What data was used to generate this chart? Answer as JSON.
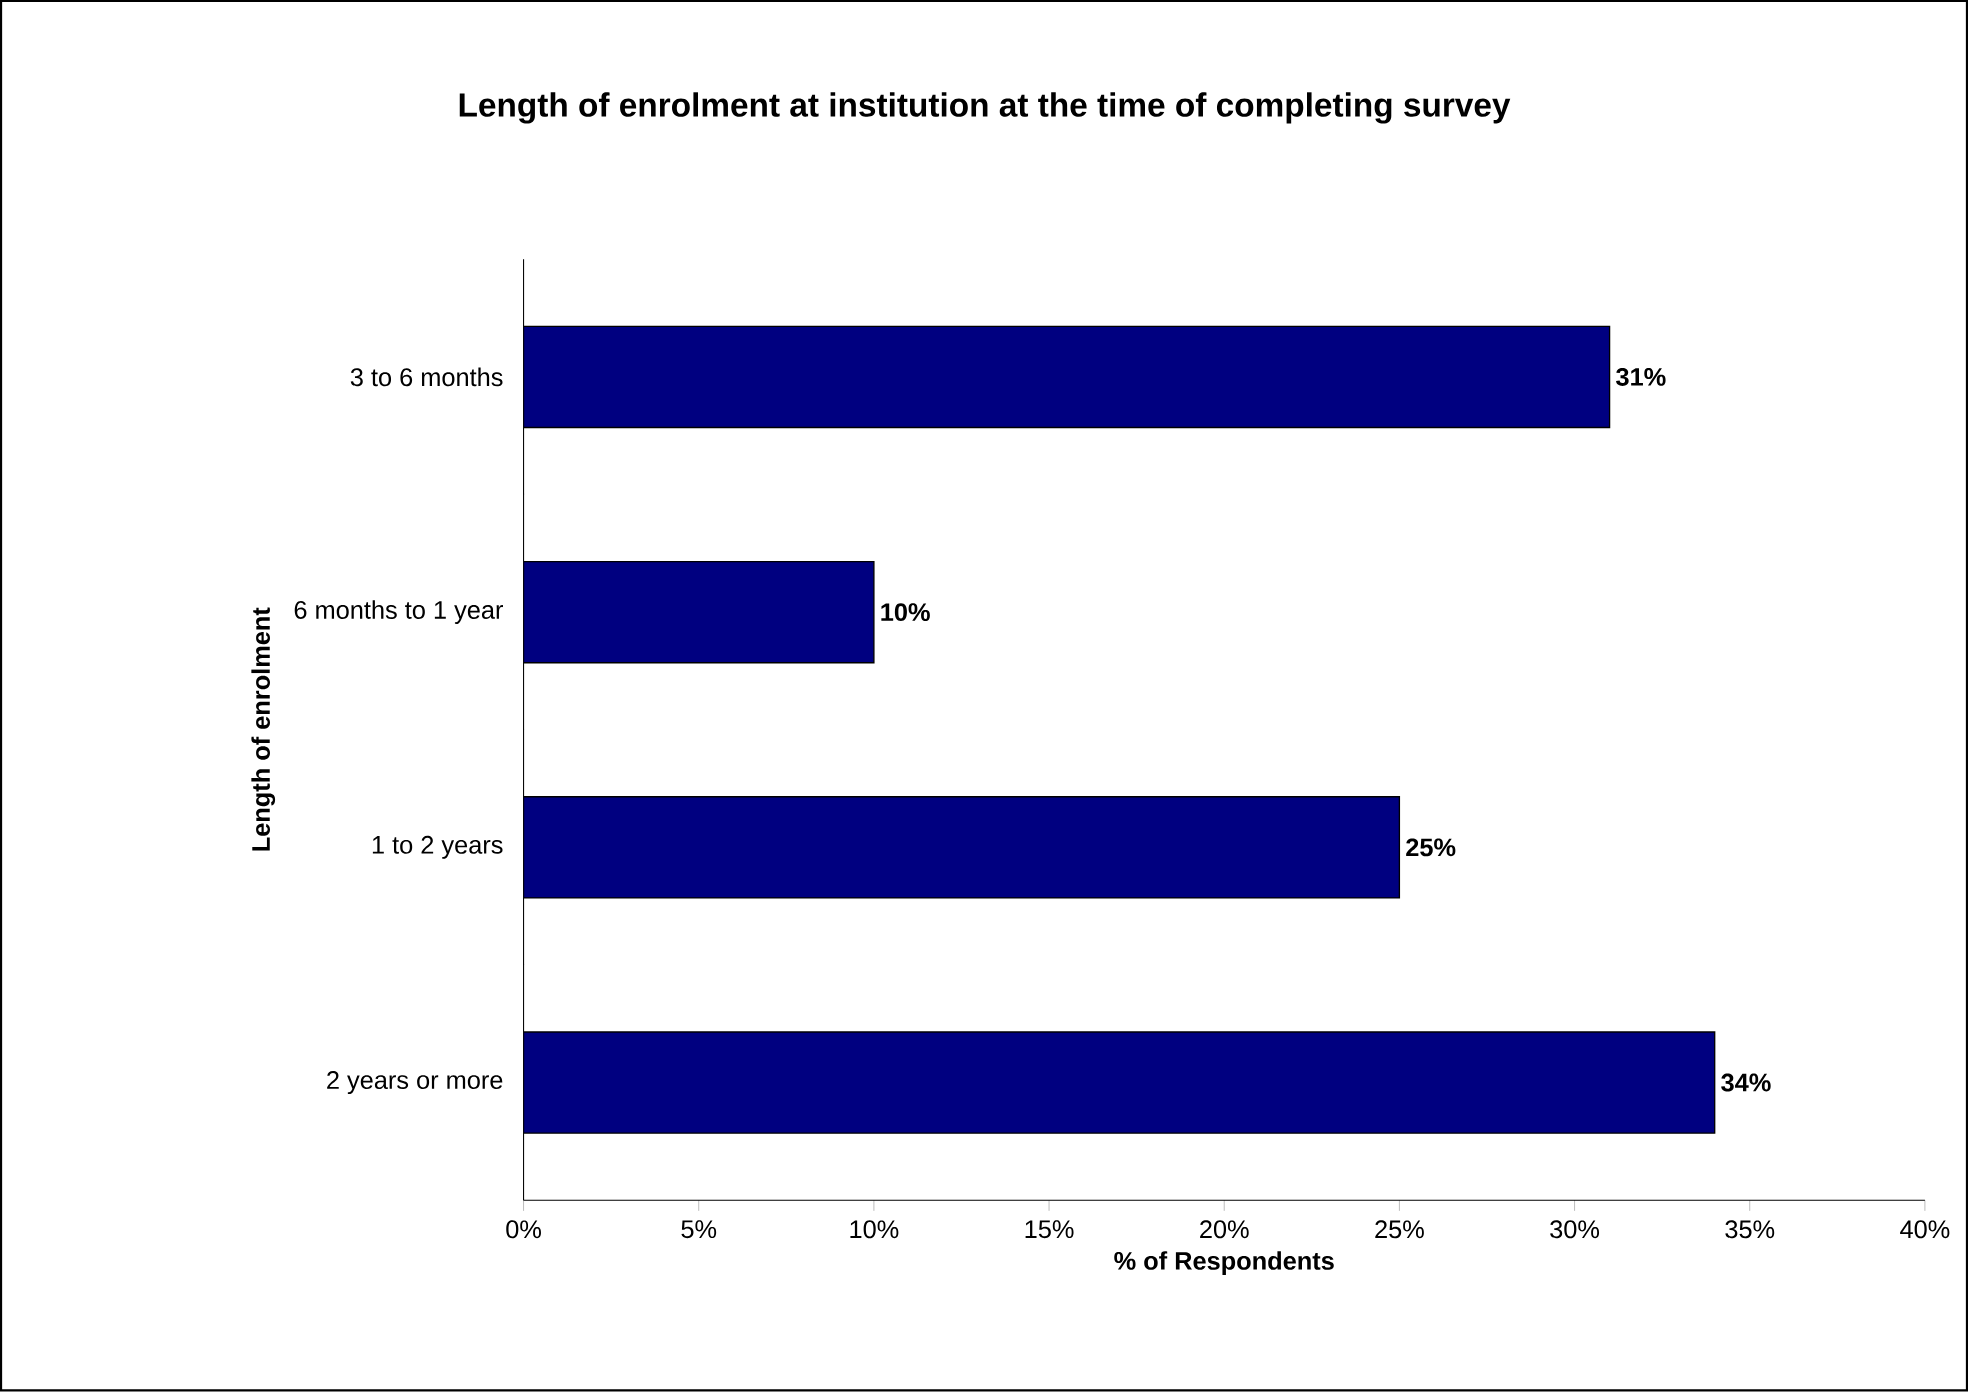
{
  "chart_data": {
    "type": "bar",
    "orientation": "horizontal",
    "title": "Length of enrolment at institution at the time of completing survey",
    "xlabel": "% of Respondents",
    "ylabel": "Length of enrolment",
    "categories": [
      "3 to 6 months",
      "6 months to 1 year",
      "1 to 2 years",
      "2 years or more"
    ],
    "values": [
      31,
      10,
      25,
      34
    ],
    "value_labels": [
      "31%",
      "10%",
      "25%",
      "34%"
    ],
    "color": "#000080",
    "xlim": [
      0,
      40
    ],
    "xticks": [
      {
        "value": 0,
        "label": "0%"
      },
      {
        "value": 5,
        "label": "5%"
      },
      {
        "value": 10,
        "label": "10%"
      },
      {
        "value": 15,
        "label": "15%"
      },
      {
        "value": 20,
        "label": "20%"
      },
      {
        "value": 25,
        "label": "25%"
      },
      {
        "value": 30,
        "label": "30%"
      },
      {
        "value": 35,
        "label": "35%"
      },
      {
        "value": 40,
        "label": "40%"
      }
    ]
  }
}
